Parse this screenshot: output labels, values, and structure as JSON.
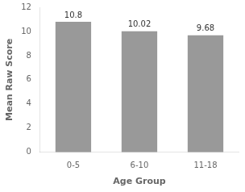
{
  "chart_data": {
    "type": "bar",
    "categories": [
      "0-5",
      "6-10",
      "11-18"
    ],
    "values": [
      10.8,
      10.02,
      9.68
    ],
    "color": "#999999",
    "xlabel": "Age Group",
    "ylabel": "Mean Raw Score",
    "ylim": [
      0,
      12
    ],
    "yticks": [
      0,
      2,
      4,
      6,
      8,
      10,
      12
    ],
    "data_labels": true,
    "grid": false
  }
}
